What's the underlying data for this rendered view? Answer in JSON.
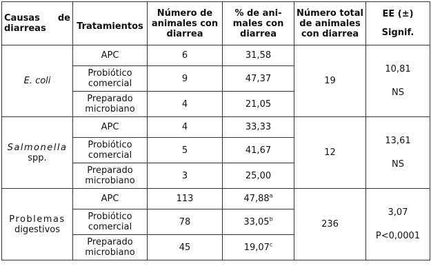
{
  "headers": {
    "causes_word1": "Causas",
    "causes_word2": "de",
    "causes_line2": "diarreas",
    "treatments": "Tratamientos",
    "num_animals_1": "Número de",
    "num_animals_2": "animales con",
    "num_animals_3": "diarrea",
    "pct_1": "% de ani-",
    "pct_2": "males con",
    "pct_3": "diarrea",
    "total_1": "Número total",
    "total_2": "de animales",
    "total_3": "con diarrea",
    "ee": "EE (±)",
    "signif": "Signif."
  },
  "groups": [
    {
      "cause_main": "E. coli",
      "cause_tail": "",
      "total": "19",
      "ee": "10,81",
      "signif": "NS",
      "rows": [
        {
          "treatment_1": "APC",
          "treatment_2": "",
          "num": "6",
          "pct": "31,58",
          "sup": ""
        },
        {
          "treatment_1": "Probiótico",
          "treatment_2": "comercial",
          "num": "9",
          "pct": "47,37",
          "sup": ""
        },
        {
          "treatment_1": "Preparado",
          "treatment_2": "microbiano",
          "num": "4",
          "pct": "21,05",
          "sup": ""
        }
      ]
    },
    {
      "cause_main": "Salmonella",
      "cause_tail": "spp.",
      "total": "12",
      "ee": "13,61",
      "signif": "NS",
      "rows": [
        {
          "treatment_1": "APC",
          "treatment_2": "",
          "num": "4",
          "pct": "33,33",
          "sup": ""
        },
        {
          "treatment_1": "Probiótico",
          "treatment_2": "comercial",
          "num": "5",
          "pct": "41,67",
          "sup": ""
        },
        {
          "treatment_1": "Preparado",
          "treatment_2": "microbiano",
          "num": "3",
          "pct": "25,00",
          "sup": ""
        }
      ]
    },
    {
      "cause_main": "Problemas",
      "cause_tail": "digestivos",
      "total": "236",
      "ee": "3,07",
      "signif": "P<0,0001",
      "rows": [
        {
          "treatment_1": "APC",
          "treatment_2": "",
          "num": "113",
          "pct": "47,88",
          "sup": "a"
        },
        {
          "treatment_1": "Probiótico",
          "treatment_2": "comercial",
          "num": "78",
          "pct": "33,05",
          "sup": "b"
        },
        {
          "treatment_1": "Preparado",
          "treatment_2": "microbiano",
          "num": "45",
          "pct": "19,07",
          "sup": "c"
        }
      ]
    }
  ]
}
